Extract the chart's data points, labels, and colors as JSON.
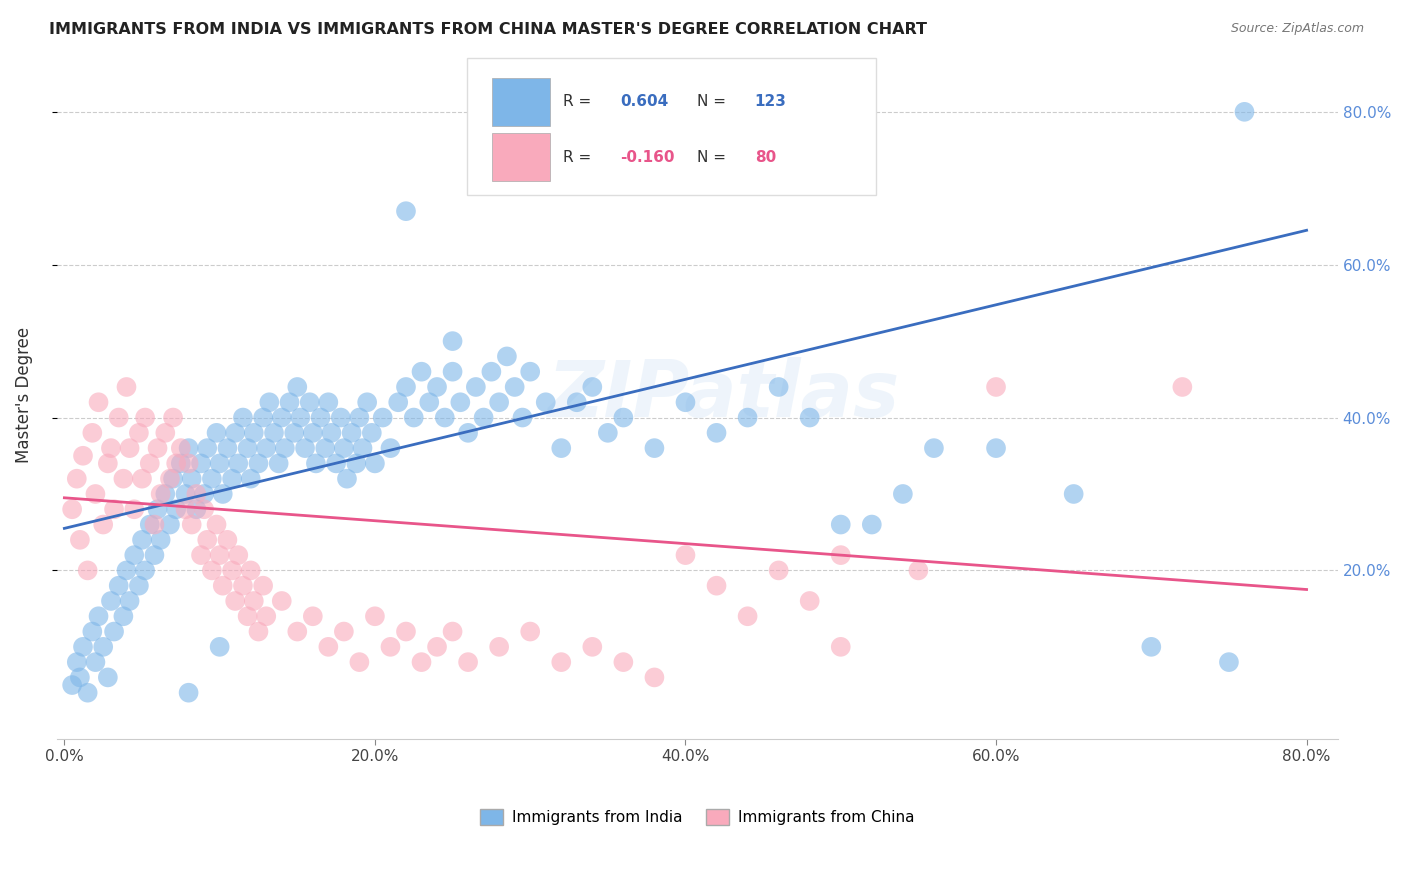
{
  "title": "IMMIGRANTS FROM INDIA VS IMMIGRANTS FROM CHINA MASTER'S DEGREE CORRELATION CHART",
  "source": "Source: ZipAtlas.com",
  "ylabel": "Master's Degree",
  "x_tick_vals": [
    0.0,
    0.2,
    0.4,
    0.6,
    0.8
  ],
  "x_tick_labels": [
    "0.0%",
    "20.0%",
    "40.0%",
    "60.0%",
    "80.0%"
  ],
  "y_tick_vals": [
    0.2,
    0.4,
    0.6,
    0.8
  ],
  "y_tick_labels": [
    "20.0%",
    "40.0%",
    "60.0%",
    "80.0%"
  ],
  "xlim": [
    -0.005,
    0.82
  ],
  "ylim": [
    -0.02,
    0.88
  ],
  "india_R": 0.604,
  "india_N": 123,
  "china_R": -0.16,
  "china_N": 80,
  "india_color": "#7EB6E8",
  "china_color": "#F9AABC",
  "india_line_color": "#3A6DBF",
  "china_line_color": "#E8558A",
  "right_tick_color": "#5B8DD9",
  "legend_india_label": "Immigrants from India",
  "legend_china_label": "Immigrants from China",
  "watermark": "ZIPatlas",
  "india_line_x": [
    0.0,
    0.8
  ],
  "india_line_y": [
    0.255,
    0.645
  ],
  "china_line_x": [
    0.0,
    0.8
  ],
  "china_line_y": [
    0.295,
    0.175
  ],
  "india_scatter": [
    [
      0.005,
      0.05
    ],
    [
      0.008,
      0.08
    ],
    [
      0.01,
      0.06
    ],
    [
      0.012,
      0.1
    ],
    [
      0.015,
      0.04
    ],
    [
      0.018,
      0.12
    ],
    [
      0.02,
      0.08
    ],
    [
      0.022,
      0.14
    ],
    [
      0.025,
      0.1
    ],
    [
      0.028,
      0.06
    ],
    [
      0.03,
      0.16
    ],
    [
      0.032,
      0.12
    ],
    [
      0.035,
      0.18
    ],
    [
      0.038,
      0.14
    ],
    [
      0.04,
      0.2
    ],
    [
      0.042,
      0.16
    ],
    [
      0.045,
      0.22
    ],
    [
      0.048,
      0.18
    ],
    [
      0.05,
      0.24
    ],
    [
      0.052,
      0.2
    ],
    [
      0.055,
      0.26
    ],
    [
      0.058,
      0.22
    ],
    [
      0.06,
      0.28
    ],
    [
      0.062,
      0.24
    ],
    [
      0.065,
      0.3
    ],
    [
      0.068,
      0.26
    ],
    [
      0.07,
      0.32
    ],
    [
      0.072,
      0.28
    ],
    [
      0.075,
      0.34
    ],
    [
      0.078,
      0.3
    ],
    [
      0.08,
      0.36
    ],
    [
      0.082,
      0.32
    ],
    [
      0.085,
      0.28
    ],
    [
      0.088,
      0.34
    ],
    [
      0.09,
      0.3
    ],
    [
      0.092,
      0.36
    ],
    [
      0.095,
      0.32
    ],
    [
      0.098,
      0.38
    ],
    [
      0.1,
      0.34
    ],
    [
      0.102,
      0.3
    ],
    [
      0.105,
      0.36
    ],
    [
      0.108,
      0.32
    ],
    [
      0.11,
      0.38
    ],
    [
      0.112,
      0.34
    ],
    [
      0.115,
      0.4
    ],
    [
      0.118,
      0.36
    ],
    [
      0.12,
      0.32
    ],
    [
      0.122,
      0.38
    ],
    [
      0.125,
      0.34
    ],
    [
      0.128,
      0.4
    ],
    [
      0.13,
      0.36
    ],
    [
      0.132,
      0.42
    ],
    [
      0.135,
      0.38
    ],
    [
      0.138,
      0.34
    ],
    [
      0.14,
      0.4
    ],
    [
      0.142,
      0.36
    ],
    [
      0.145,
      0.42
    ],
    [
      0.148,
      0.38
    ],
    [
      0.15,
      0.44
    ],
    [
      0.152,
      0.4
    ],
    [
      0.155,
      0.36
    ],
    [
      0.158,
      0.42
    ],
    [
      0.16,
      0.38
    ],
    [
      0.162,
      0.34
    ],
    [
      0.165,
      0.4
    ],
    [
      0.168,
      0.36
    ],
    [
      0.17,
      0.42
    ],
    [
      0.172,
      0.38
    ],
    [
      0.175,
      0.34
    ],
    [
      0.178,
      0.4
    ],
    [
      0.18,
      0.36
    ],
    [
      0.182,
      0.32
    ],
    [
      0.185,
      0.38
    ],
    [
      0.188,
      0.34
    ],
    [
      0.19,
      0.4
    ],
    [
      0.192,
      0.36
    ],
    [
      0.195,
      0.42
    ],
    [
      0.198,
      0.38
    ],
    [
      0.2,
      0.34
    ],
    [
      0.205,
      0.4
    ],
    [
      0.21,
      0.36
    ],
    [
      0.215,
      0.42
    ],
    [
      0.22,
      0.44
    ],
    [
      0.225,
      0.4
    ],
    [
      0.23,
      0.46
    ],
    [
      0.235,
      0.42
    ],
    [
      0.24,
      0.44
    ],
    [
      0.245,
      0.4
    ],
    [
      0.25,
      0.46
    ],
    [
      0.255,
      0.42
    ],
    [
      0.26,
      0.38
    ],
    [
      0.265,
      0.44
    ],
    [
      0.27,
      0.4
    ],
    [
      0.275,
      0.46
    ],
    [
      0.28,
      0.42
    ],
    [
      0.285,
      0.48
    ],
    [
      0.29,
      0.44
    ],
    [
      0.295,
      0.4
    ],
    [
      0.3,
      0.46
    ],
    [
      0.31,
      0.42
    ],
    [
      0.32,
      0.36
    ],
    [
      0.33,
      0.42
    ],
    [
      0.34,
      0.44
    ],
    [
      0.35,
      0.38
    ],
    [
      0.36,
      0.4
    ],
    [
      0.38,
      0.36
    ],
    [
      0.4,
      0.42
    ],
    [
      0.42,
      0.38
    ],
    [
      0.44,
      0.4
    ],
    [
      0.46,
      0.44
    ],
    [
      0.48,
      0.4
    ],
    [
      0.5,
      0.26
    ],
    [
      0.52,
      0.26
    ],
    [
      0.54,
      0.3
    ],
    [
      0.56,
      0.36
    ],
    [
      0.6,
      0.36
    ],
    [
      0.65,
      0.3
    ],
    [
      0.7,
      0.1
    ],
    [
      0.75,
      0.08
    ],
    [
      0.22,
      0.67
    ],
    [
      0.25,
      0.5
    ],
    [
      0.08,
      0.04
    ],
    [
      0.1,
      0.1
    ],
    [
      0.76,
      0.8
    ]
  ],
  "china_scatter": [
    [
      0.005,
      0.28
    ],
    [
      0.008,
      0.32
    ],
    [
      0.01,
      0.24
    ],
    [
      0.012,
      0.35
    ],
    [
      0.015,
      0.2
    ],
    [
      0.018,
      0.38
    ],
    [
      0.02,
      0.3
    ],
    [
      0.022,
      0.42
    ],
    [
      0.025,
      0.26
    ],
    [
      0.028,
      0.34
    ],
    [
      0.03,
      0.36
    ],
    [
      0.032,
      0.28
    ],
    [
      0.035,
      0.4
    ],
    [
      0.038,
      0.32
    ],
    [
      0.04,
      0.44
    ],
    [
      0.042,
      0.36
    ],
    [
      0.045,
      0.28
    ],
    [
      0.048,
      0.38
    ],
    [
      0.05,
      0.32
    ],
    [
      0.052,
      0.4
    ],
    [
      0.055,
      0.34
    ],
    [
      0.058,
      0.26
    ],
    [
      0.06,
      0.36
    ],
    [
      0.062,
      0.3
    ],
    [
      0.065,
      0.38
    ],
    [
      0.068,
      0.32
    ],
    [
      0.07,
      0.4
    ],
    [
      0.072,
      0.34
    ],
    [
      0.075,
      0.36
    ],
    [
      0.078,
      0.28
    ],
    [
      0.08,
      0.34
    ],
    [
      0.082,
      0.26
    ],
    [
      0.085,
      0.3
    ],
    [
      0.088,
      0.22
    ],
    [
      0.09,
      0.28
    ],
    [
      0.092,
      0.24
    ],
    [
      0.095,
      0.2
    ],
    [
      0.098,
      0.26
    ],
    [
      0.1,
      0.22
    ],
    [
      0.102,
      0.18
    ],
    [
      0.105,
      0.24
    ],
    [
      0.108,
      0.2
    ],
    [
      0.11,
      0.16
    ],
    [
      0.112,
      0.22
    ],
    [
      0.115,
      0.18
    ],
    [
      0.118,
      0.14
    ],
    [
      0.12,
      0.2
    ],
    [
      0.122,
      0.16
    ],
    [
      0.125,
      0.12
    ],
    [
      0.128,
      0.18
    ],
    [
      0.13,
      0.14
    ],
    [
      0.14,
      0.16
    ],
    [
      0.15,
      0.12
    ],
    [
      0.16,
      0.14
    ],
    [
      0.17,
      0.1
    ],
    [
      0.18,
      0.12
    ],
    [
      0.19,
      0.08
    ],
    [
      0.2,
      0.14
    ],
    [
      0.21,
      0.1
    ],
    [
      0.22,
      0.12
    ],
    [
      0.23,
      0.08
    ],
    [
      0.24,
      0.1
    ],
    [
      0.25,
      0.12
    ],
    [
      0.26,
      0.08
    ],
    [
      0.28,
      0.1
    ],
    [
      0.3,
      0.12
    ],
    [
      0.32,
      0.08
    ],
    [
      0.34,
      0.1
    ],
    [
      0.36,
      0.08
    ],
    [
      0.38,
      0.06
    ],
    [
      0.4,
      0.22
    ],
    [
      0.42,
      0.18
    ],
    [
      0.44,
      0.14
    ],
    [
      0.46,
      0.2
    ],
    [
      0.48,
      0.16
    ],
    [
      0.5,
      0.22
    ],
    [
      0.55,
      0.2
    ],
    [
      0.6,
      0.44
    ],
    [
      0.72,
      0.44
    ],
    [
      0.5,
      0.1
    ]
  ]
}
